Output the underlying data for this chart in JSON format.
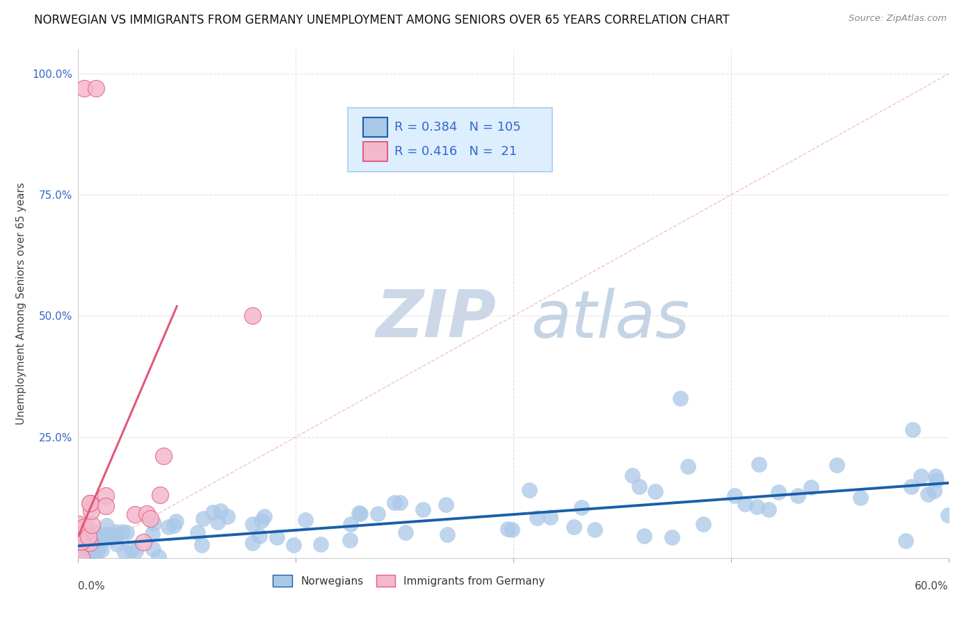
{
  "title": "NORWEGIAN VS IMMIGRANTS FROM GERMANY UNEMPLOYMENT AMONG SENIORS OVER 65 YEARS CORRELATION CHART",
  "source": "Source: ZipAtlas.com",
  "ylabel": "Unemployment Among Seniors over 65 years",
  "xlim": [
    0.0,
    0.6
  ],
  "ylim": [
    0.0,
    1.05
  ],
  "yticks": [
    0.0,
    0.25,
    0.5,
    0.75,
    1.0
  ],
  "ytick_labels": [
    "",
    "25.0%",
    "50.0%",
    "75.0%",
    "100.0%"
  ],
  "norwegian_R": 0.384,
  "norwegian_N": 105,
  "german_R": 0.416,
  "german_N": 21,
  "norwegian_color": "#aac8e8",
  "norwegian_edge_color": "#aac8e8",
  "norwegian_line_color": "#1a5fa8",
  "german_color": "#f4b8cc",
  "german_edge_color": "#e06080",
  "german_line_color": "#e05878",
  "ref_line_color": "#f0b0c0",
  "background_color": "#ffffff",
  "grid_color": "#e0e0e0",
  "tick_label_color": "#3366cc",
  "title_color": "#111111",
  "source_color": "#888888",
  "axis_label_color": "#444444",
  "legend_bg": "#ddeeff",
  "legend_border": "#aaccee",
  "nor_line_x0": 0.0,
  "nor_line_x1": 0.6,
  "nor_line_y0": 0.025,
  "nor_line_y1": 0.155,
  "ger_line_x0": 0.0,
  "ger_line_x1": 0.068,
  "ger_line_y0": 0.045,
  "ger_line_y1": 0.52,
  "nor_seed": 99,
  "ger_seed": 55
}
